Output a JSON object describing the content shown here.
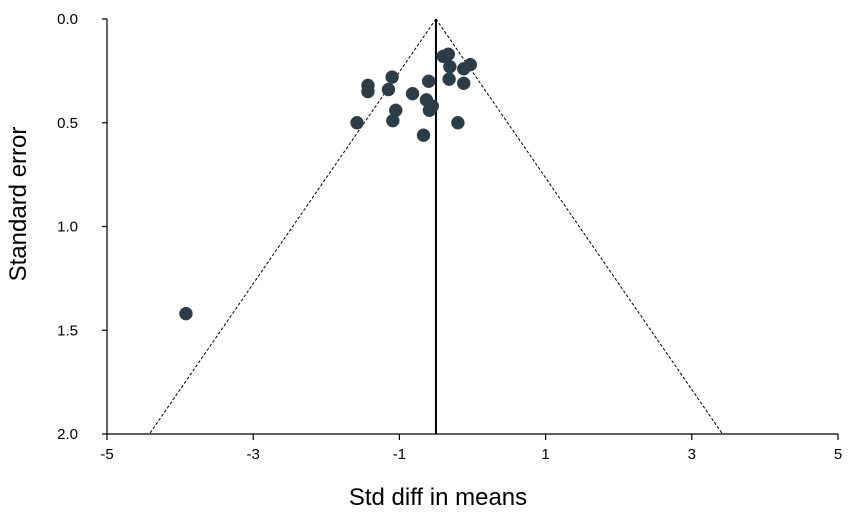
{
  "chart_data": {
    "type": "scatter",
    "title": "",
    "xlabel": "Std diff in means",
    "ylabel": "Standard error",
    "xlim": [
      -5,
      5
    ],
    "ylim": [
      0.0,
      2.0
    ],
    "y_inverted": true,
    "x_ticks": [
      -5,
      -3,
      -1,
      1,
      3,
      5
    ],
    "x_tick_labels": [
      "-5",
      "-3",
      "-1",
      "1",
      "3",
      "5"
    ],
    "y_ticks": [
      0.0,
      0.5,
      1.0,
      1.5,
      2.0
    ],
    "y_tick_labels": [
      "0.0",
      "0.5",
      "1.0",
      "1.5",
      "2.0"
    ],
    "grid": false,
    "legend": "none",
    "pooled_estimate": -0.5,
    "funnel_limits": {
      "apex": [
        -0.5,
        0.0
      ],
      "base_left": [
        -4.42,
        2.0
      ],
      "base_right": [
        3.42,
        2.0
      ]
    },
    "colors": {
      "points": "#2a3d48",
      "lines": "#000000"
    },
    "points": [
      {
        "x": -0.4,
        "y": 0.18
      },
      {
        "x": -0.33,
        "y": 0.17
      },
      {
        "x": -0.03,
        "y": 0.22
      },
      {
        "x": -0.12,
        "y": 0.24
      },
      {
        "x": -0.31,
        "y": 0.23
      },
      {
        "x": -0.6,
        "y": 0.3
      },
      {
        "x": -0.32,
        "y": 0.29
      },
      {
        "x": -0.12,
        "y": 0.31
      },
      {
        "x": -1.1,
        "y": 0.28
      },
      {
        "x": -1.15,
        "y": 0.34
      },
      {
        "x": -1.43,
        "y": 0.32
      },
      {
        "x": -1.43,
        "y": 0.35
      },
      {
        "x": -0.82,
        "y": 0.36
      },
      {
        "x": -0.63,
        "y": 0.39
      },
      {
        "x": -0.55,
        "y": 0.42
      },
      {
        "x": -0.59,
        "y": 0.44
      },
      {
        "x": -1.05,
        "y": 0.44
      },
      {
        "x": -1.09,
        "y": 0.49
      },
      {
        "x": -1.58,
        "y": 0.5
      },
      {
        "x": -0.2,
        "y": 0.5
      },
      {
        "x": -0.67,
        "y": 0.56
      },
      {
        "x": -3.92,
        "y": 1.42
      }
    ]
  }
}
